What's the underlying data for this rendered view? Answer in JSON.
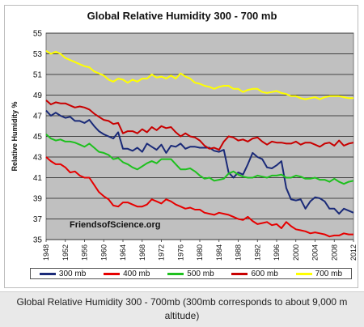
{
  "caption": "Global Relative Humidity 300 - 700mb (300mb corresponds to about 9,000 m altitude)",
  "chart_data": {
    "type": "line",
    "title": "Global Relative Humidity 300 - 700 mb",
    "xlabel": "",
    "ylabel": "Relative Humidity %",
    "ylim": [
      35,
      55
    ],
    "yticks": [
      "35",
      "37",
      "39",
      "41",
      "43",
      "45",
      "47",
      "49",
      "51",
      "53",
      "55"
    ],
    "xticks": [
      "1948",
      "1952",
      "1956",
      "1960",
      "1964",
      "1968",
      "1972",
      "1976",
      "1980",
      "1984",
      "1988",
      "1992",
      "1996",
      "2000",
      "2004",
      "2008",
      "2012"
    ],
    "x": [
      1948,
      1949,
      1950,
      1951,
      1952,
      1953,
      1954,
      1955,
      1956,
      1957,
      1958,
      1959,
      1960,
      1961,
      1962,
      1963,
      1964,
      1965,
      1966,
      1967,
      1968,
      1969,
      1970,
      1971,
      1972,
      1973,
      1974,
      1975,
      1976,
      1977,
      1978,
      1979,
      1980,
      1981,
      1982,
      1983,
      1984,
      1985,
      1986,
      1987,
      1988,
      1989,
      1990,
      1991,
      1992,
      1993,
      1994,
      1995,
      1996,
      1997,
      1998,
      1999,
      2000,
      2001,
      2002,
      2003,
      2004,
      2005,
      2006,
      2007,
      2008,
      2009,
      2010,
      2011,
      2012
    ],
    "grid": true,
    "legend": "bottom",
    "series": [
      {
        "name": "300 mb",
        "color": "#1a2a78",
        "values": [
          47.5,
          47.0,
          47.3,
          47.0,
          46.8,
          46.9,
          46.5,
          46.5,
          46.3,
          46.6,
          46.0,
          45.5,
          45.2,
          45.0,
          44.8,
          45.4,
          43.8,
          43.8,
          43.6,
          43.9,
          43.5,
          44.3,
          44.0,
          43.7,
          44.2,
          43.4,
          44.1,
          44.0,
          44.3,
          43.8,
          44.0,
          44.0,
          43.9,
          43.9,
          43.9,
          43.6,
          43.5,
          43.7,
          41.5,
          41.0,
          41.5,
          41.3,
          42.3,
          43.4,
          43.0,
          42.8,
          42.0,
          41.9,
          42.2,
          42.6,
          40.0,
          38.9,
          38.8,
          38.9,
          38.0,
          38.7,
          39.1,
          39.0,
          38.7,
          38.0,
          38.0,
          37.5,
          38.0,
          37.8,
          37.6
        ]
      },
      {
        "name": "400 mb",
        "color": "#e60000",
        "values": [
          43.0,
          42.6,
          42.3,
          42.3,
          42.0,
          41.5,
          41.6,
          41.2,
          41.0,
          41.0,
          40.3,
          39.6,
          39.2,
          38.9,
          38.3,
          38.2,
          38.6,
          38.6,
          38.4,
          38.2,
          38.2,
          38.4,
          38.9,
          38.7,
          38.5,
          38.9,
          38.7,
          38.4,
          38.2,
          38.0,
          38.1,
          37.9,
          37.9,
          37.6,
          37.5,
          37.4,
          37.6,
          37.5,
          37.4,
          37.2,
          37.0,
          36.9,
          37.2,
          36.8,
          36.5,
          36.6,
          36.7,
          36.4,
          36.5,
          36.1,
          36.7,
          36.3,
          36.0,
          35.9,
          35.8,
          35.6,
          35.7,
          35.6,
          35.5,
          35.3,
          35.4,
          35.4,
          35.6,
          35.5,
          35.5
        ]
      },
      {
        "name": "500 mb",
        "color": "#1ec01e",
        "values": [
          45.2,
          44.8,
          44.6,
          44.7,
          44.5,
          44.5,
          44.4,
          44.2,
          44.0,
          44.3,
          43.9,
          43.5,
          43.4,
          43.2,
          42.8,
          42.9,
          42.5,
          42.3,
          42.0,
          41.8,
          42.1,
          42.4,
          42.6,
          42.4,
          42.8,
          42.8,
          42.8,
          42.3,
          41.8,
          41.8,
          41.9,
          41.6,
          41.2,
          40.9,
          41.0,
          40.7,
          40.8,
          40.9,
          41.4,
          41.6,
          41.3,
          41.1,
          41.0,
          41.0,
          41.2,
          41.1,
          41.0,
          41.2,
          41.2,
          41.3,
          41.0,
          41.0,
          41.2,
          41.1,
          40.9,
          40.9,
          41.0,
          40.8,
          40.8,
          40.6,
          40.9,
          40.6,
          40.4,
          40.6,
          40.7
        ]
      },
      {
        "name": "600 mb",
        "color": "#c80000",
        "values": [
          48.5,
          48.1,
          48.3,
          48.2,
          48.2,
          48.0,
          47.8,
          47.9,
          47.8,
          47.6,
          47.2,
          46.9,
          46.6,
          46.5,
          46.2,
          46.3,
          45.3,
          45.5,
          45.5,
          45.3,
          45.7,
          45.4,
          45.9,
          45.6,
          46.0,
          45.8,
          45.9,
          45.4,
          45.0,
          45.3,
          45.0,
          44.9,
          44.6,
          44.1,
          43.8,
          43.9,
          43.7,
          44.5,
          45.0,
          44.9,
          44.6,
          44.7,
          44.5,
          44.8,
          44.9,
          44.5,
          44.2,
          44.5,
          44.4,
          44.4,
          44.3,
          44.3,
          44.5,
          44.2,
          44.4,
          44.4,
          44.2,
          44.0,
          44.3,
          44.4,
          44.1,
          44.6,
          44.1,
          44.3,
          44.4
        ]
      },
      {
        "name": "700 mb",
        "color": "#ffff00",
        "values": [
          53.3,
          53.0,
          53.2,
          53.0,
          52.6,
          52.4,
          52.2,
          52.0,
          51.8,
          51.7,
          51.3,
          51.1,
          50.9,
          50.5,
          50.3,
          50.6,
          50.5,
          50.2,
          50.5,
          50.3,
          50.6,
          50.6,
          51.0,
          50.7,
          50.8,
          50.6,
          50.9,
          50.6,
          51.1,
          50.8,
          50.6,
          50.2,
          50.1,
          49.9,
          49.8,
          49.6,
          49.8,
          49.9,
          49.9,
          49.6,
          49.6,
          49.3,
          49.5,
          49.6,
          49.6,
          49.3,
          49.2,
          49.3,
          49.4,
          49.2,
          49.1,
          48.9,
          48.9,
          48.7,
          48.6,
          48.7,
          48.8,
          48.6,
          48.8,
          48.9,
          48.9,
          48.9,
          48.8,
          48.7,
          48.7
        ]
      }
    ],
    "annotations": [
      "FriendsofScience.org"
    ]
  }
}
